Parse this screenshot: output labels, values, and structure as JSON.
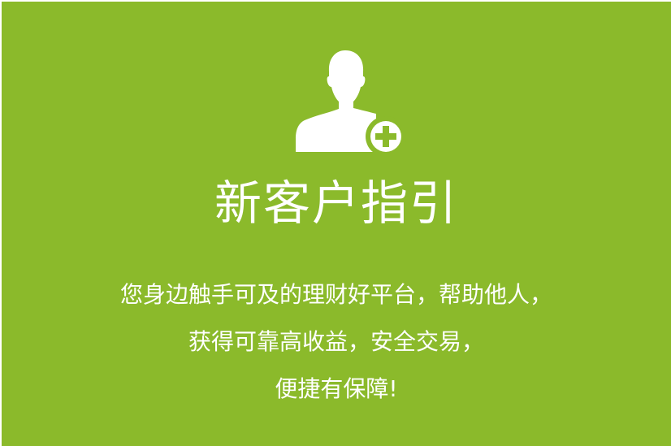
{
  "brand": {
    "background": "#8bba2b",
    "text_color": "#ffffff"
  },
  "icon": {
    "name": "add-user-icon"
  },
  "title": "新客户指引",
  "description": {
    "line1": "您身边触手可及的理财好平台，帮助他人，",
    "line2": "获得可靠高收益，安全交易，",
    "line3": "便捷有保障!"
  }
}
